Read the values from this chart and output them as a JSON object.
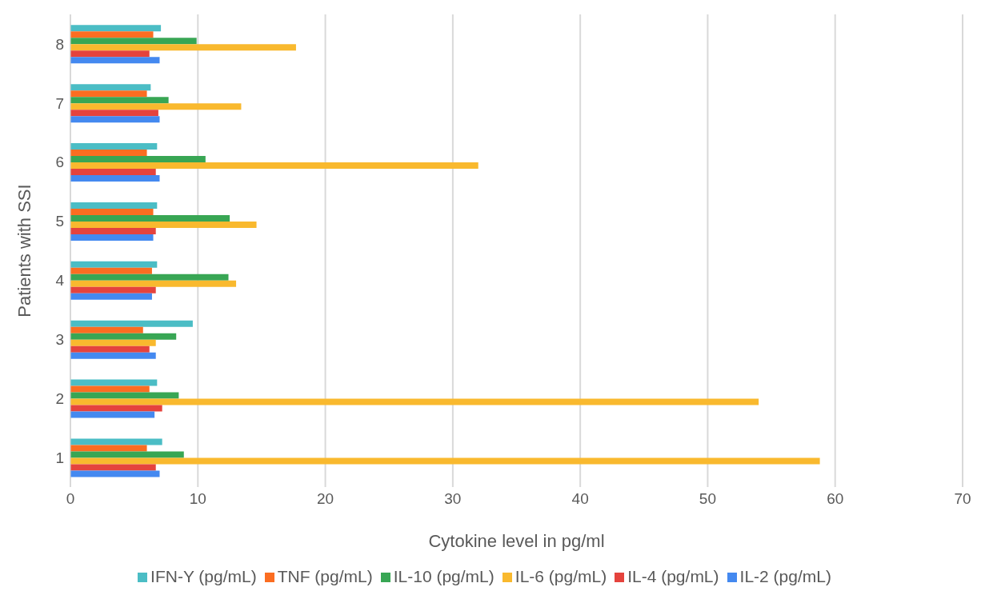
{
  "chart_data": {
    "type": "bar",
    "orientation": "horizontal",
    "xlabel": "Cytokine level in pg/ml",
    "ylabel": "Patients with SSI",
    "categories": [
      "8",
      "7",
      "6",
      "5",
      "4",
      "3",
      "2",
      "1"
    ],
    "series": [
      {
        "name": "IFN-Y (pg/mL)",
        "color": "#4bbdc5",
        "values": [
          7.1,
          6.3,
          6.8,
          6.8,
          6.8,
          9.6,
          6.8,
          7.2
        ]
      },
      {
        "name": "TNF (pg/mL)",
        "color": "#fb6d21",
        "values": [
          6.5,
          6.0,
          6.0,
          6.5,
          6.4,
          5.7,
          6.2,
          6.0
        ]
      },
      {
        "name": "IL-10 (pg/mL)",
        "color": "#38a654",
        "values": [
          9.9,
          7.7,
          10.6,
          12.5,
          12.4,
          8.3,
          8.5,
          8.9
        ]
      },
      {
        "name": "IL-6 (pg/mL)",
        "color": "#f9b92e",
        "values": [
          17.7,
          13.4,
          32.0,
          14.6,
          13.0,
          6.7,
          54.0,
          58.8
        ]
      },
      {
        "name": "IL-4 (pg/mL)",
        "color": "#e5433d",
        "values": [
          6.2,
          6.9,
          6.7,
          6.7,
          6.7,
          6.2,
          7.2,
          6.7
        ]
      },
      {
        "name": "IL-2 (pg/mL)",
        "color": "#4489f0",
        "values": [
          7.0,
          7.0,
          7.0,
          6.5,
          6.4,
          6.7,
          6.6,
          7.0
        ]
      }
    ],
    "xlim": [
      0,
      70
    ],
    "xticks": [
      0,
      10,
      20,
      30,
      40,
      50,
      60,
      70
    ],
    "grid": "x",
    "legend": "bottom"
  }
}
